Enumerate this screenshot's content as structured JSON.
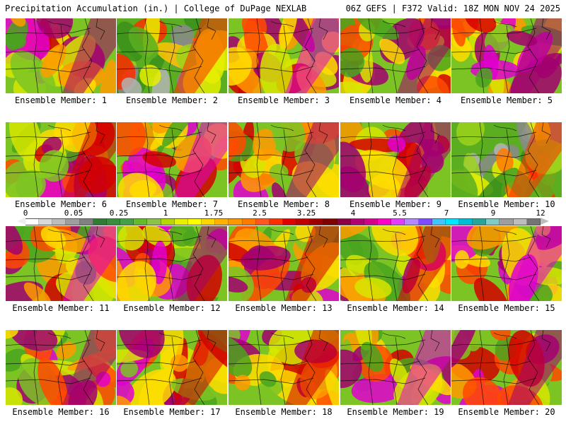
{
  "header": {
    "left": "Precipitation Accumulation (in.) | College of DuPage NEXLAB",
    "right": "06Z GEFS | F372 Valid: 18Z MON NOV 24 2025"
  },
  "colorbar": {
    "labels": [
      "0",
      "0.05",
      "0.25",
      "1",
      "1.75",
      "2.5",
      "3.25",
      "4",
      "5.5",
      "7",
      "9",
      "12"
    ],
    "colors": [
      "#ffffff",
      "#d8d8d8",
      "#bdbdbd",
      "#9e9e9e",
      "#808080",
      "#2e7d32",
      "#388e3c",
      "#43a047",
      "#66bb2a",
      "#8bc34a",
      "#b5d900",
      "#e6f000",
      "#ffff00",
      "#ffd700",
      "#ffb300",
      "#ff9800",
      "#ff7b00",
      "#ff5722",
      "#ff3000",
      "#e00000",
      "#c00000",
      "#9e0000",
      "#800000",
      "#8b0045",
      "#b00070",
      "#d4008a",
      "#ff00c8",
      "#e040fb",
      "#b388ff",
      "#7c4dff",
      "#40c4ff",
      "#00e5ff",
      "#00bcd4",
      "#26a69a",
      "#80cbc4",
      "#9e9e9e",
      "#bdbdbd",
      "#757575"
    ]
  },
  "panels": [
    {
      "caption": "Ensemble Member: 1"
    },
    {
      "caption": "Ensemble Member: 2"
    },
    {
      "caption": "Ensemble Member: 3"
    },
    {
      "caption": "Ensemble Member: 4"
    },
    {
      "caption": "Ensemble Member: 5"
    },
    {
      "caption": "Ensemble Member: 6"
    },
    {
      "caption": "Ensemble Member: 7"
    },
    {
      "caption": "Ensemble Member: 8"
    },
    {
      "caption": "Ensemble Member: 9"
    },
    {
      "caption": "Ensemble Member: 10"
    },
    {
      "caption": "Ensemble Member: 11"
    },
    {
      "caption": "Ensemble Member: 12"
    },
    {
      "caption": "Ensemble Member: 13"
    },
    {
      "caption": "Ensemble Member: 14"
    },
    {
      "caption": "Ensemble Member: 15"
    },
    {
      "caption": "Ensemble Member: 16"
    },
    {
      "caption": "Ensemble Member: 17"
    },
    {
      "caption": "Ensemble Member: 18"
    },
    {
      "caption": "Ensemble Member: 19"
    },
    {
      "caption": "Ensemble Member: 20"
    }
  ]
}
